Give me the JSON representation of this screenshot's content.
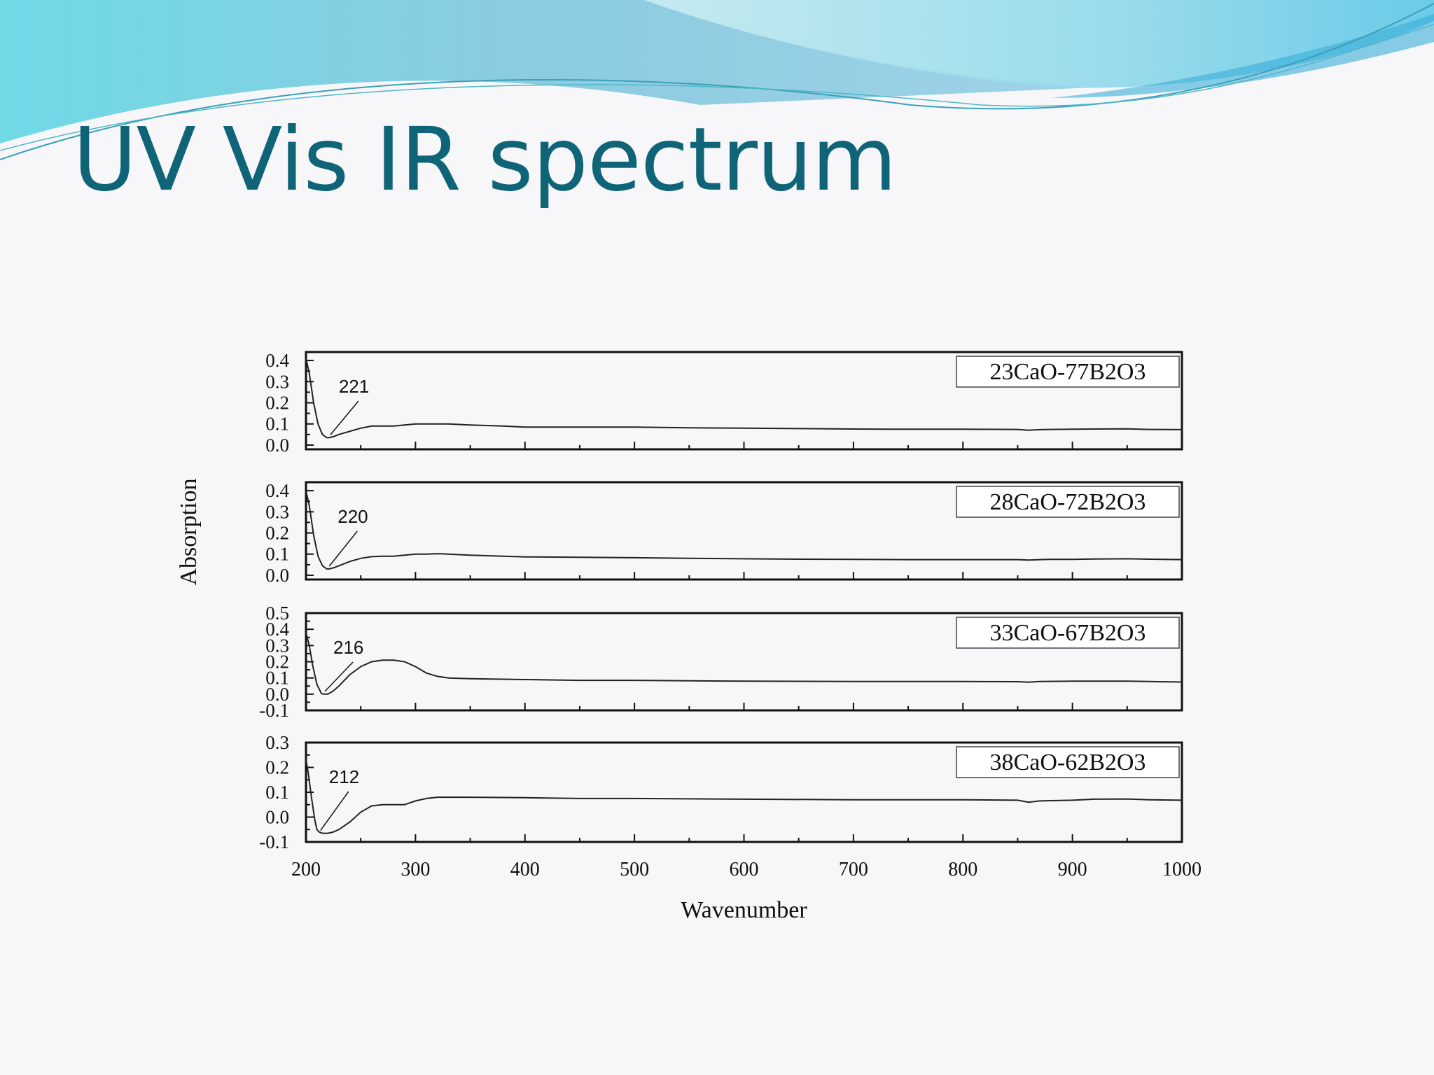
{
  "slide": {
    "title": "UV Vis IR spectrum",
    "colors": {
      "title": "#0f6577",
      "banner_light": "#9fe3ec",
      "banner_dark": "#4fb8d6",
      "background": "#f7f7fa"
    }
  },
  "chart_data": {
    "type": "line",
    "xlabel": "Wavenumber",
    "ylabel": "Absorption",
    "xlim": [
      200,
      1000
    ],
    "x_ticks": [
      200,
      300,
      400,
      500,
      600,
      700,
      800,
      900,
      1000
    ],
    "grid": false,
    "legend_placement": "top-right",
    "panels": [
      {
        "name": "23CaO-77B2O3",
        "ylim": [
          -0.02,
          0.44
        ],
        "y_ticks": [
          "0.0",
          "0.1",
          "0.2",
          "0.3",
          "0.4"
        ],
        "annotation": "221",
        "annotation_x": 221,
        "x": [
          200,
          203,
          207,
          211,
          215,
          219,
          221,
          225,
          230,
          240,
          250,
          260,
          270,
          280,
          290,
          300,
          310,
          320,
          330,
          350,
          380,
          400,
          450,
          500,
          550,
          600,
          650,
          700,
          750,
          800,
          850,
          860,
          870,
          880,
          900,
          920,
          950,
          970,
          1000
        ],
        "y": [
          0.41,
          0.34,
          0.2,
          0.1,
          0.05,
          0.035,
          0.035,
          0.04,
          0.05,
          0.065,
          0.08,
          0.09,
          0.09,
          0.09,
          0.095,
          0.1,
          0.1,
          0.1,
          0.1,
          0.095,
          0.09,
          0.085,
          0.085,
          0.085,
          0.082,
          0.08,
          0.078,
          0.076,
          0.075,
          0.075,
          0.074,
          0.07,
          0.073,
          0.074,
          0.075,
          0.076,
          0.077,
          0.074,
          0.073
        ]
      },
      {
        "name": "28CaO-72B2O3",
        "ylim": [
          -0.02,
          0.44
        ],
        "y_ticks": [
          "0.0",
          "0.1",
          "0.2",
          "0.3",
          "0.4"
        ],
        "annotation": "220",
        "annotation_x": 220,
        "x": [
          200,
          203,
          207,
          211,
          215,
          219,
          221,
          225,
          230,
          240,
          250,
          260,
          270,
          280,
          290,
          300,
          310,
          320,
          330,
          350,
          380,
          400,
          450,
          500,
          550,
          600,
          650,
          700,
          750,
          800,
          850,
          860,
          870,
          880,
          900,
          920,
          950,
          970,
          1000
        ],
        "y": [
          0.4,
          0.33,
          0.19,
          0.09,
          0.045,
          0.03,
          0.03,
          0.035,
          0.045,
          0.065,
          0.08,
          0.088,
          0.09,
          0.09,
          0.095,
          0.1,
          0.1,
          0.102,
          0.1,
          0.095,
          0.09,
          0.087,
          0.085,
          0.083,
          0.08,
          0.078,
          0.076,
          0.075,
          0.074,
          0.074,
          0.074,
          0.072,
          0.074,
          0.075,
          0.075,
          0.077,
          0.078,
          0.076,
          0.074
        ]
      },
      {
        "name": "33CaO-67B2O3",
        "ylim": [
          -0.1,
          0.5
        ],
        "y_ticks": [
          "-0.1",
          "0.0",
          "0.1",
          "0.2",
          "0.3",
          "0.4",
          "0.5"
        ],
        "annotation": "216",
        "annotation_x": 216,
        "x": [
          200,
          203,
          206,
          210,
          214,
          216,
          220,
          225,
          230,
          240,
          250,
          260,
          270,
          280,
          290,
          300,
          310,
          320,
          330,
          350,
          400,
          450,
          500,
          600,
          700,
          800,
          850,
          860,
          870,
          900,
          950,
          970,
          1000
        ],
        "y": [
          0.38,
          0.3,
          0.18,
          0.06,
          0.005,
          0.0,
          0.0,
          0.02,
          0.05,
          0.12,
          0.17,
          0.2,
          0.21,
          0.21,
          0.2,
          0.17,
          0.13,
          0.11,
          0.1,
          0.095,
          0.09,
          0.085,
          0.085,
          0.08,
          0.078,
          0.078,
          0.077,
          0.074,
          0.078,
          0.08,
          0.08,
          0.078,
          0.075
        ]
      },
      {
        "name": "38CaO-62B2O3",
        "ylim": [
          -0.1,
          0.3
        ],
        "y_ticks": [
          "-0.1",
          "0.0",
          "0.1",
          "0.2",
          "0.3"
        ],
        "annotation": "212",
        "annotation_x": 212,
        "x": [
          200,
          202,
          205,
          208,
          210,
          212,
          215,
          220,
          225,
          230,
          240,
          250,
          260,
          270,
          280,
          290,
          300,
          310,
          320,
          330,
          350,
          400,
          450,
          500,
          600,
          700,
          800,
          850,
          860,
          870,
          900,
          920,
          950,
          970,
          1000
        ],
        "y": [
          0.23,
          0.18,
          0.08,
          -0.01,
          -0.05,
          -0.06,
          -0.065,
          -0.065,
          -0.06,
          -0.05,
          -0.02,
          0.02,
          0.045,
          0.05,
          0.05,
          0.05,
          0.065,
          0.075,
          0.08,
          0.08,
          0.08,
          0.078,
          0.075,
          0.075,
          0.072,
          0.07,
          0.07,
          0.068,
          0.06,
          0.065,
          0.068,
          0.072,
          0.073,
          0.07,
          0.068
        ]
      }
    ]
  }
}
